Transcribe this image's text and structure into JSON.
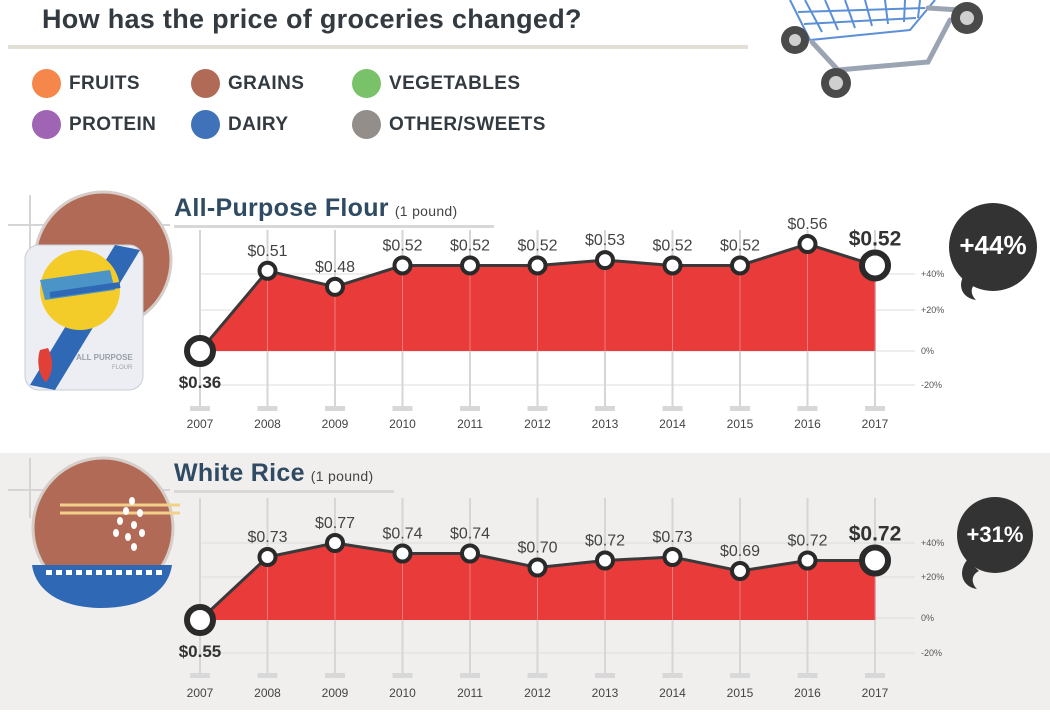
{
  "header": {
    "title": "How has the price of groceries changed?"
  },
  "legend": [
    {
      "label": "FRUITS",
      "color": "#f5874a"
    },
    {
      "label": "GRAINS",
      "color": "#b06a55"
    },
    {
      "label": "VEGETABLES",
      "color": "#7ac26a"
    },
    {
      "label": "PROTEIN",
      "color": "#a064b4"
    },
    {
      "label": "DAIRY",
      "color": "#3f72b8"
    },
    {
      "label": "OTHER/SWEETS",
      "color": "#948e8a"
    }
  ],
  "chart_data": [
    {
      "type": "area",
      "title": "All-Purpose Flour",
      "unit": "(1 pound)",
      "x": [
        "2007",
        "2008",
        "2009",
        "2010",
        "2011",
        "2012",
        "2013",
        "2014",
        "2015",
        "2016",
        "2017"
      ],
      "values": [
        0.36,
        0.51,
        0.48,
        0.52,
        0.52,
        0.52,
        0.53,
        0.52,
        0.52,
        0.56,
        0.52
      ],
      "data_labels": [
        "$0.36",
        "$0.51",
        "$0.48",
        "$0.52",
        "$0.52",
        "$0.52",
        "$0.53",
        "$0.52",
        "$0.52",
        "$0.56",
        "$0.52"
      ],
      "y_ticks": [
        "+40%",
        "+20%",
        "0%",
        "-20%"
      ],
      "change": "+44%",
      "colors": {
        "fill": "#ea3b3b",
        "line": "#3a3a3a",
        "badge": "#333333"
      }
    },
    {
      "type": "area",
      "title": "White Rice",
      "unit": "(1 pound)",
      "x": [
        "2007",
        "2008",
        "2009",
        "2010",
        "2011",
        "2012",
        "2013",
        "2014",
        "2015",
        "2016",
        "2017"
      ],
      "values": [
        0.55,
        0.73,
        0.77,
        0.74,
        0.74,
        0.7,
        0.72,
        0.73,
        0.69,
        0.72,
        0.72
      ],
      "data_labels": [
        "$0.55",
        "$0.73",
        "$0.77",
        "$0.74",
        "$0.74",
        "$0.70",
        "$0.72",
        "$0.73",
        "$0.69",
        "$0.72",
        "$0.72"
      ],
      "y_ticks": [
        "+40%",
        "+20%",
        "0%",
        "-20%"
      ],
      "change": "+31%",
      "colors": {
        "fill": "#ea3b3b",
        "line": "#3a3a3a",
        "badge": "#333333"
      }
    }
  ],
  "illustrations": {
    "flour_bag_text": [
      "ALL PURPOSE",
      "FLOUR"
    ]
  }
}
